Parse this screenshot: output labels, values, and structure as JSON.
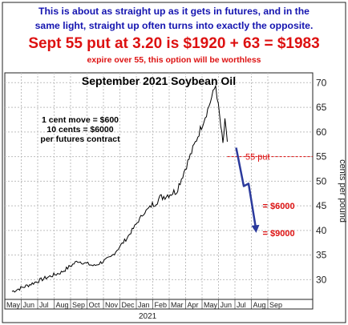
{
  "header": {
    "line1": "This is about as straight up as it gets in futures, and in the",
    "line2": "same light, straight up often turns into exactly the opposite.",
    "line3": "Sept 55 put at 3.20 is $1920 + 63 = $1983",
    "line4": "expire over 55, this option will be worthless"
  },
  "chart_data": {
    "type": "line",
    "title": "September 2021 Soybean Oil",
    "ylabel": "cents per pound",
    "xlabel": "2021",
    "ylim": [
      26,
      72
    ],
    "y_ticks": [
      30,
      35,
      40,
      45,
      50,
      55,
      60,
      65,
      70
    ],
    "x_ticks": [
      "May",
      "Jun",
      "Jul",
      "Aug",
      "Sep",
      "Oct",
      "Nov",
      "Dec",
      "Jan",
      "Feb",
      "Mar",
      "Apr",
      "May",
      "Jun",
      "Jul",
      "Aug",
      "Sep"
    ],
    "grid": true,
    "series": [
      {
        "values": [
          [
            "May",
            27.6
          ],
          [
            "Jun",
            28.9
          ],
          [
            "Jul",
            30.3
          ],
          [
            "Aug",
            31.5
          ],
          [
            "Sep",
            33.8
          ],
          [
            "Oct",
            32.8
          ],
          [
            "Nov",
            34.5
          ],
          [
            "Dec",
            38.5
          ],
          [
            "Jan",
            43.5
          ],
          [
            "Feb",
            46.6
          ],
          [
            "Mar",
            48.0
          ],
          [
            "Apr",
            56.5
          ],
          [
            "May",
            60.8
          ],
          [
            "Jun",
            58.0
          ]
        ]
      }
    ],
    "annotations": {
      "contract_note": [
        "1 cent move = $600",
        "10 cents = $6000",
        "per futures contract"
      ],
      "put_label": "55 put",
      "put_strike": 55,
      "target1_label": "= $6000",
      "target2_label": "= $9000",
      "projection": [
        [
          56.8,
          49.0
        ],
        [
          42.5,
          40.0
        ]
      ]
    },
    "colors": {
      "price": "#000000",
      "projection": "#2b3a9c",
      "annotation": "#dd1111",
      "grid": "#bfbfbf"
    }
  }
}
